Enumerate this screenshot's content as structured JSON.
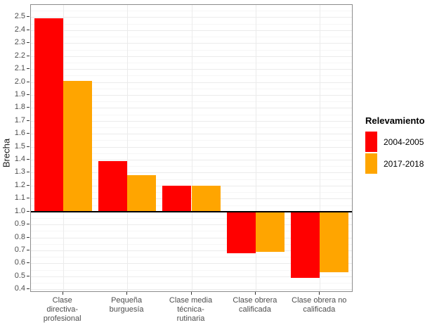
{
  "chart_data": {
    "type": "bar",
    "title": "",
    "xlabel": "",
    "ylabel": "Brecha",
    "ylim": [
      0.385,
      2.595
    ],
    "baseline": 1.0,
    "grid": true,
    "yticks": [
      "0.4",
      "0.5",
      "0.6",
      "0.7",
      "0.8",
      "0.9",
      "1.0",
      "1.1",
      "1.2",
      "1.3",
      "1.4",
      "1.5",
      "1.6",
      "1.7",
      "1.8",
      "1.9",
      "2.0",
      "2.1",
      "2.2",
      "2.3",
      "2.4",
      "2.5"
    ],
    "categories": [
      "Clase\ndirectiva-\nprofesional",
      "Pequeña\nburguesía",
      "Clase media\ntécnica-\nrutinaria",
      "Clase obrera\ncalificada",
      "Clase obrera no\ncalificada"
    ],
    "series": [
      {
        "name": "2004-2005",
        "color": "#ff0000",
        "values": [
          2.49,
          1.39,
          1.2,
          0.68,
          0.49
        ]
      },
      {
        "name": "2017-2018",
        "color": "#ffa500",
        "values": [
          2.01,
          1.28,
          1.2,
          0.69,
          0.53
        ]
      }
    ],
    "legend_title": "Relevamiento",
    "legend_position": "right"
  },
  "colors": {
    "grid_major": "#ebebeb",
    "grid_minor": "#f6f6f6",
    "panel_border": "#8c8c8c",
    "baseline": "#000000",
    "tick_text": "#4d4d4d"
  }
}
